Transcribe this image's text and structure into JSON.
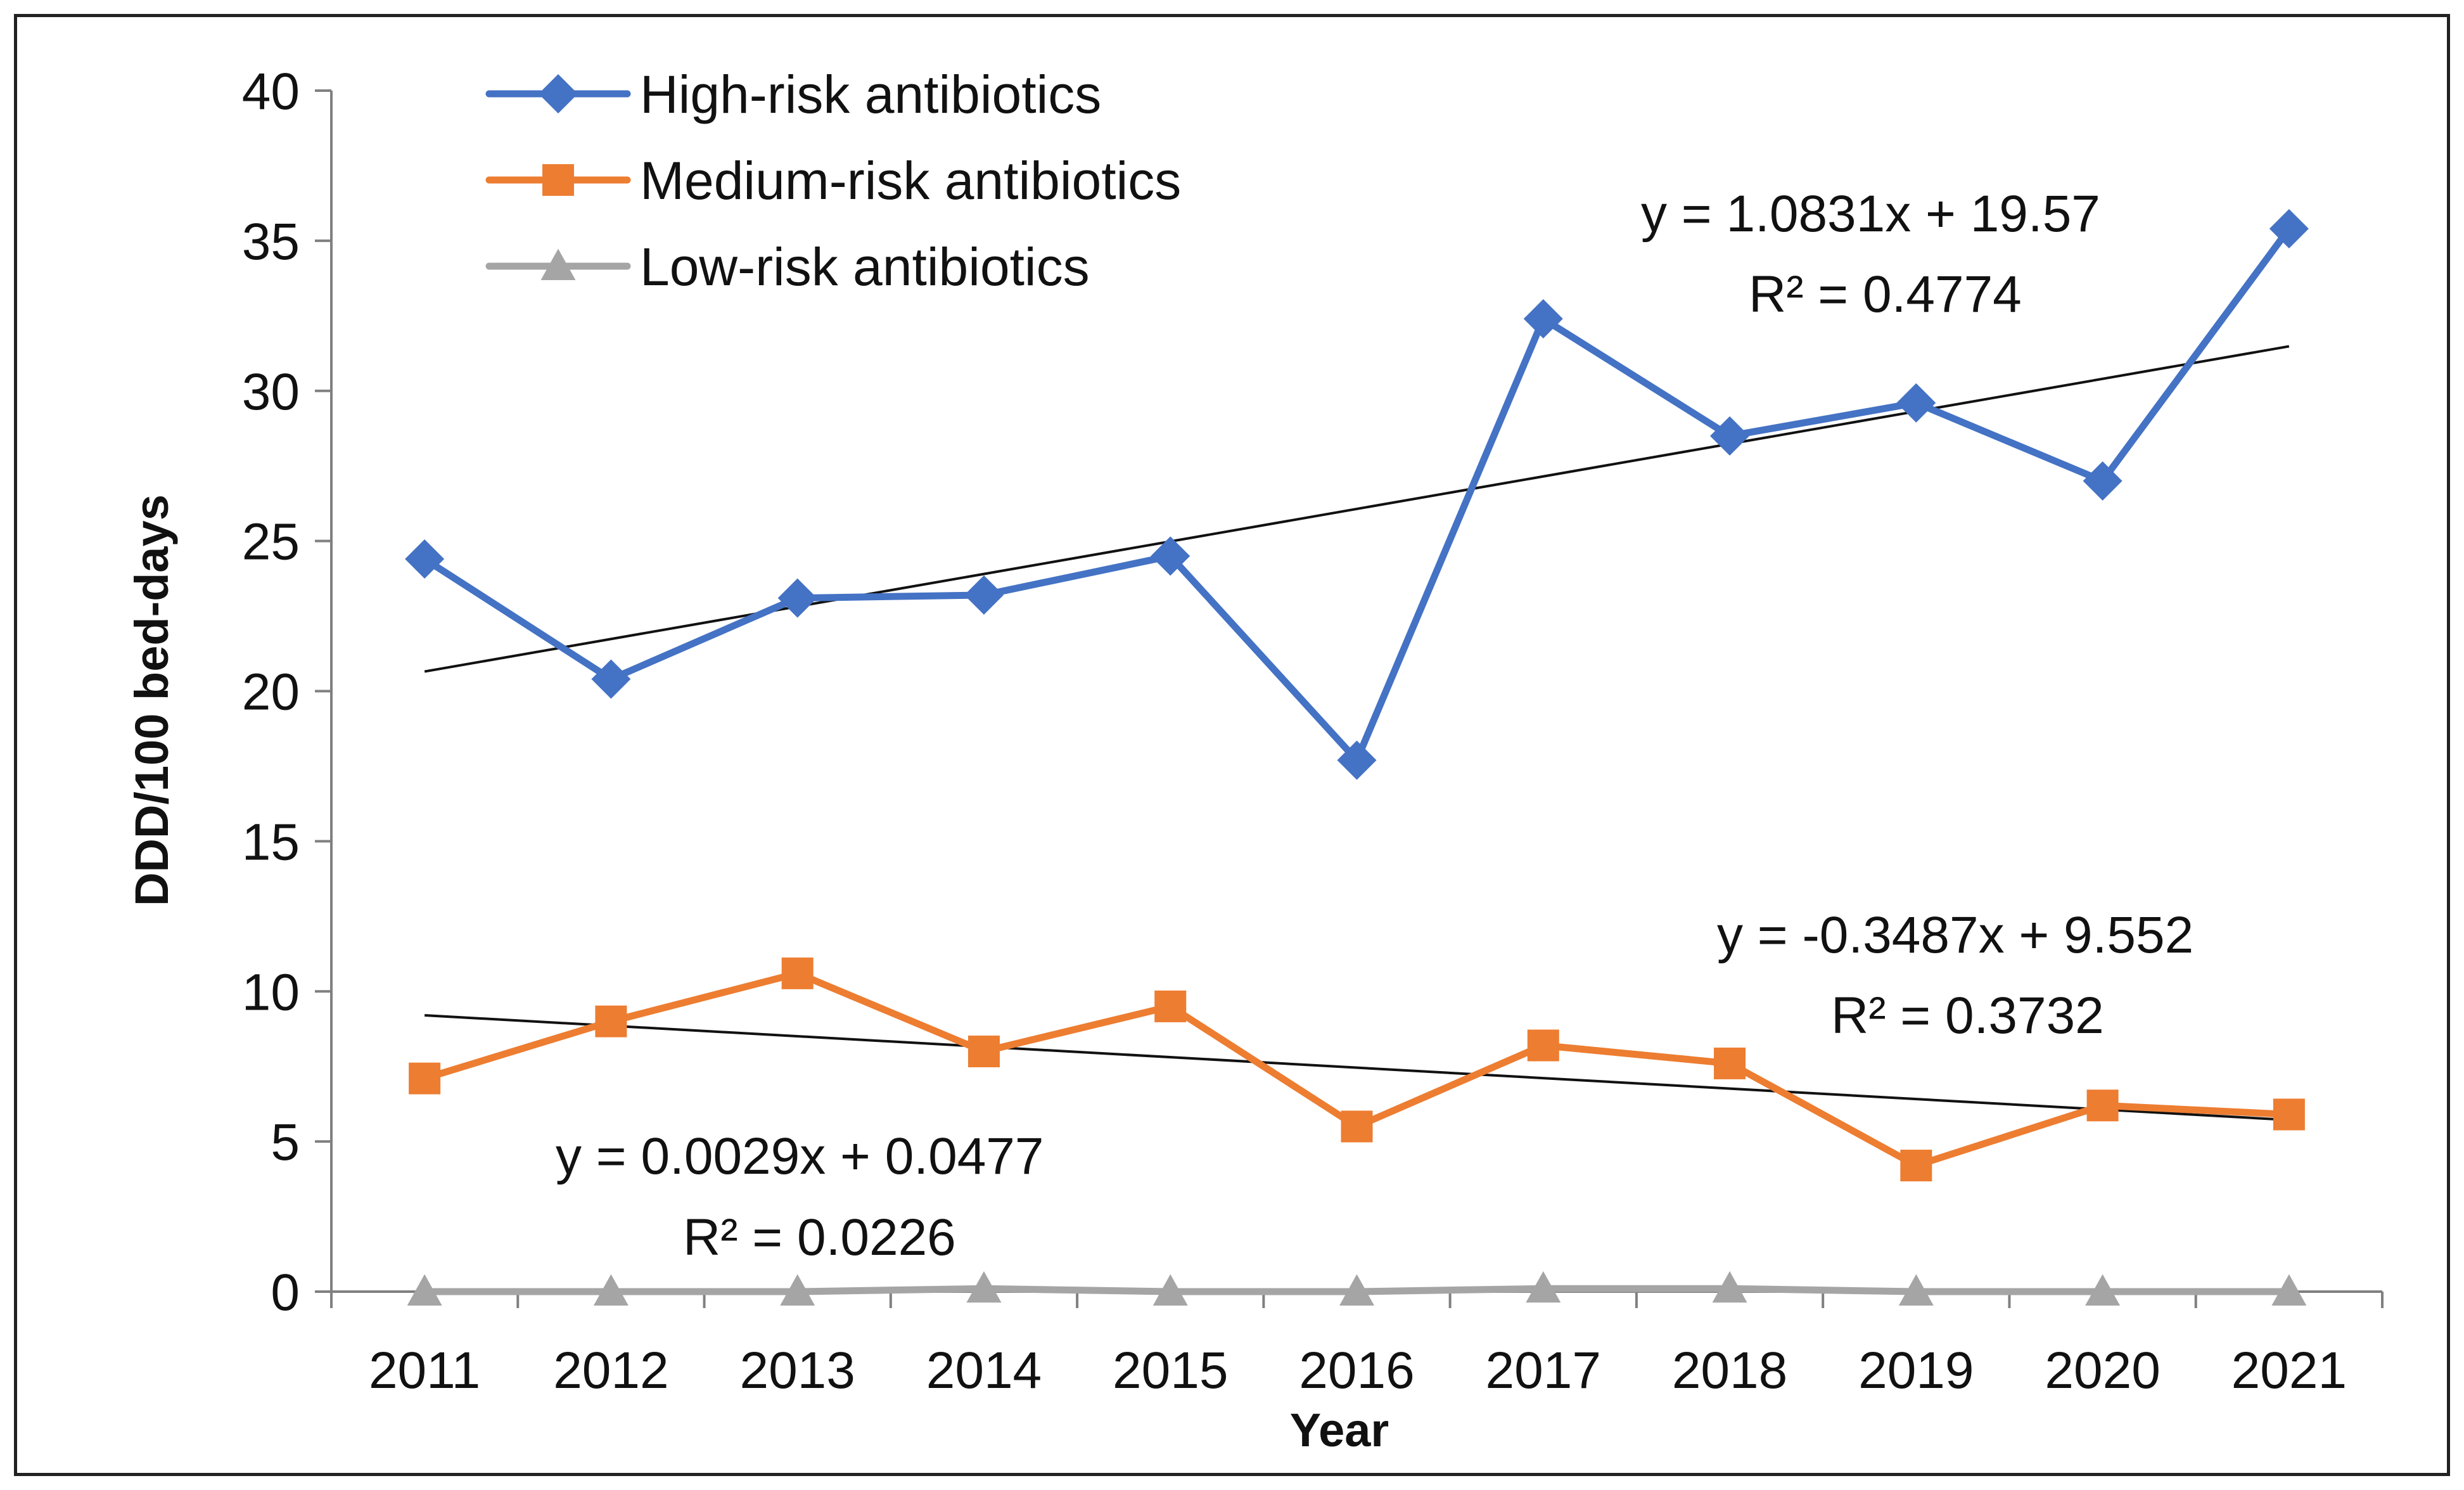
{
  "chart_data": {
    "type": "line",
    "title": "",
    "xlabel": "Year",
    "ylabel": "DDD/100 bed-days",
    "categories": [
      "2011",
      "2012",
      "2013",
      "2014",
      "2015",
      "2016",
      "2017",
      "2018",
      "2019",
      "2020",
      "2021"
    ],
    "ylim": [
      0,
      40
    ],
    "yticks": [
      0,
      5,
      10,
      15,
      20,
      25,
      30,
      35,
      40
    ],
    "grid": false,
    "legend_position": "top-left",
    "series": [
      {
        "name": "High-risk antibiotics",
        "color": "#4472C4",
        "marker": "diamond",
        "values": [
          24.4,
          20.4,
          23.1,
          23.2,
          24.5,
          17.7,
          32.4,
          28.5,
          29.6,
          27.0,
          35.4
        ],
        "trendline": {
          "slope": 1.0831,
          "intercept": 19.57
        }
      },
      {
        "name": "Medium-risk antibiotics",
        "color": "#ED7D31",
        "marker": "square",
        "values": [
          7.1,
          9.0,
          10.6,
          8.0,
          9.5,
          5.5,
          8.2,
          7.6,
          4.2,
          6.2,
          5.9
        ],
        "trendline": {
          "slope": -0.3487,
          "intercept": 9.552
        }
      },
      {
        "name": "Low-risk antibiotics",
        "color": "#A5A5A5",
        "marker": "triangle",
        "values": [
          0.0,
          0.0,
          0.0,
          0.1,
          0.0,
          0.0,
          0.1,
          0.1,
          0.0,
          0.0,
          0.0
        ],
        "trendline": {
          "slope": 0.0029,
          "intercept": 0.0477
        }
      }
    ],
    "annotations": [
      {
        "name": "high-risk-equation",
        "text": "y = 1.0831x + 19.57"
      },
      {
        "name": "high-risk-r2",
        "text": "R² = 0.4774"
      },
      {
        "name": "medium-risk-equation",
        "text": "y = -0.3487x + 9.552"
      },
      {
        "name": "medium-risk-r2",
        "text": "R² = 0.3732"
      },
      {
        "name": "low-risk-equation",
        "text": "y = 0.0029x + 0.0477"
      },
      {
        "name": "low-risk-r2",
        "text": "R² = 0.0226"
      }
    ]
  }
}
